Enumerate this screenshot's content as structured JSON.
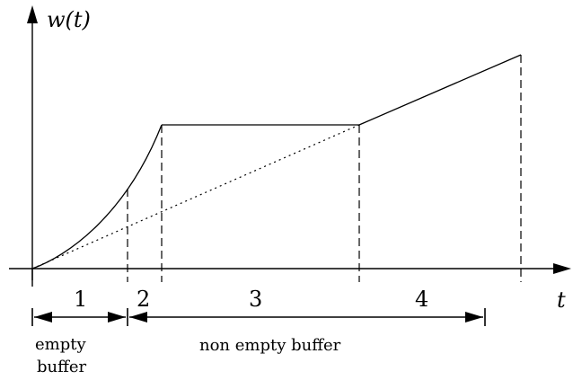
{
  "axes": {
    "y_label": "w(t)",
    "x_label": "t"
  },
  "phases": [
    {
      "number": "1"
    },
    {
      "number": "2"
    },
    {
      "number": "3"
    },
    {
      "number": "4"
    }
  ],
  "buffer_labels": {
    "empty_line1": "empty",
    "empty_line2": "buffer",
    "non_empty": "non empty buffer"
  }
}
